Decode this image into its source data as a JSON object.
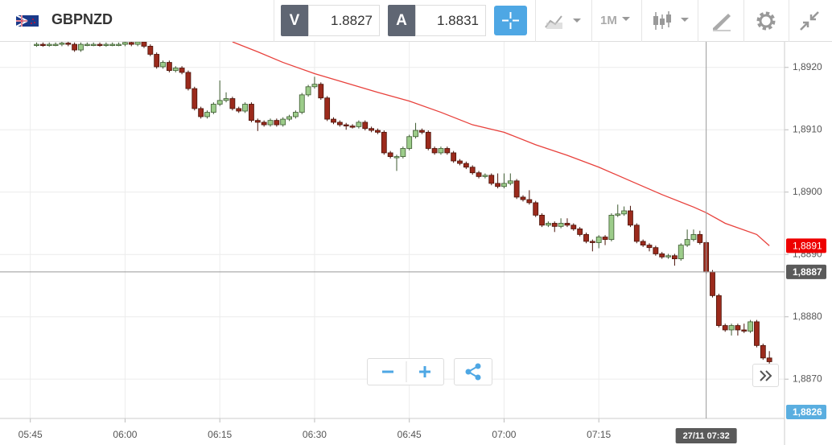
{
  "toolbar": {
    "symbol": "GBPNZD",
    "bid_label": "V",
    "bid": "1.8827",
    "ask_label": "A",
    "ask": "1.8831",
    "timeframe": "1M"
  },
  "chart_data": {
    "type": "candlestick",
    "up_color": "#9ccc8a",
    "down_color": "#9b2a1c",
    "grid": true,
    "xlim": [
      340.2,
      464.4
    ],
    "ylim": [
      1.88637,
      1.89241
    ],
    "xticks": [
      {
        "value": 345,
        "label": "05:45"
      },
      {
        "value": 360,
        "label": "06:00"
      },
      {
        "value": 375,
        "label": "06:15"
      },
      {
        "value": 390,
        "label": "06:30"
      },
      {
        "value": 405,
        "label": "06:45"
      },
      {
        "value": 420,
        "label": "07:00"
      },
      {
        "value": 435,
        "label": "07:15"
      }
    ],
    "yticks": [
      {
        "value": 1.892,
        "label": "1,8920"
      },
      {
        "value": 1.891,
        "label": "1,8910"
      },
      {
        "value": 1.89,
        "label": "1,8900"
      },
      {
        "value": 1.889,
        "label": "1,8890"
      },
      {
        "value": 1.888,
        "label": "1,8880"
      },
      {
        "value": 1.887,
        "label": "1,8870"
      }
    ],
    "x": [
      346,
      347,
      348,
      349,
      350,
      351,
      352,
      353,
      354,
      355,
      356,
      357,
      358,
      359,
      360,
      361,
      362,
      363,
      364,
      365,
      366,
      367,
      368,
      369,
      370,
      371,
      372,
      373,
      374,
      375,
      376,
      377,
      378,
      379,
      380,
      381,
      382,
      383,
      384,
      385,
      386,
      387,
      388,
      389,
      390,
      391,
      392,
      393,
      394,
      395,
      396,
      397,
      398,
      399,
      400,
      401,
      402,
      403,
      404,
      405,
      406,
      407,
      408,
      409,
      410,
      411,
      412,
      413,
      414,
      415,
      416,
      417,
      418,
      419,
      420,
      421,
      422,
      423,
      424,
      425,
      426,
      427,
      428,
      429,
      430,
      431,
      432,
      433,
      434,
      435,
      436,
      437,
      438,
      439,
      440,
      441,
      442,
      443,
      444,
      445,
      446,
      447,
      448,
      449,
      450,
      451,
      452,
      453,
      454,
      455,
      456,
      457,
      458,
      459,
      460,
      461,
      462
    ],
    "ohlc": [
      [
        1.89236,
        1.8924,
        1.89233,
        1.89237
      ],
      [
        1.89237,
        1.8924,
        1.89233,
        1.89236
      ],
      [
        1.89236,
        1.8924,
        1.89233,
        1.89237
      ],
      [
        1.89237,
        1.8924,
        1.89234,
        1.89237
      ],
      [
        1.89237,
        1.89242,
        1.89234,
        1.89239
      ],
      [
        1.89239,
        1.89242,
        1.89234,
        1.89237
      ],
      [
        1.89237,
        1.8924,
        1.89225,
        1.89228
      ],
      [
        1.89228,
        1.8924,
        1.89225,
        1.89237
      ],
      [
        1.89237,
        1.8924,
        1.89234,
        1.89237
      ],
      [
        1.89237,
        1.8924,
        1.89234,
        1.89237
      ],
      [
        1.89237,
        1.8924,
        1.89233,
        1.89236
      ],
      [
        1.89236,
        1.8924,
        1.89233,
        1.89237
      ],
      [
        1.89237,
        1.8924,
        1.89234,
        1.89237
      ],
      [
        1.89237,
        1.8924,
        1.89234,
        1.89237
      ],
      [
        1.89237,
        1.89243,
        1.89234,
        1.8924
      ],
      [
        1.8924,
        1.89243,
        1.89234,
        1.89237
      ],
      [
        1.89237,
        1.89244,
        1.89234,
        1.89241
      ],
      [
        1.89241,
        1.89244,
        1.89231,
        1.89234
      ],
      [
        1.89234,
        1.89237,
        1.89218,
        1.89221
      ],
      [
        1.89221,
        1.89224,
        1.89198,
        1.89201
      ],
      [
        1.89201,
        1.89211,
        1.89198,
        1.89208
      ],
      [
        1.89208,
        1.89211,
        1.89192,
        1.89195
      ],
      [
        1.89195,
        1.89202,
        1.89192,
        1.89199
      ],
      [
        1.89199,
        1.89202,
        1.89189,
        1.89192
      ],
      [
        1.89192,
        1.89195,
        1.89163,
        1.89166
      ],
      [
        1.89166,
        1.89169,
        1.89131,
        1.89134
      ],
      [
        1.89134,
        1.89137,
        1.89118,
        1.89121
      ],
      [
        1.89121,
        1.89131,
        1.89118,
        1.89128
      ],
      [
        1.89128,
        1.89144,
        1.89125,
        1.89141
      ],
      [
        1.89141,
        1.89179,
        1.89138,
        1.89147
      ],
      [
        1.89147,
        1.8916,
        1.89144,
        1.8915
      ],
      [
        1.8915,
        1.89153,
        1.89131,
        1.89134
      ],
      [
        1.89134,
        1.89137,
        1.89127,
        1.8913
      ],
      [
        1.8913,
        1.89144,
        1.89127,
        1.89141
      ],
      [
        1.89141,
        1.89144,
        1.89112,
        1.89115
      ],
      [
        1.89115,
        1.89118,
        1.89098,
        1.89112
      ],
      [
        1.89112,
        1.89115,
        1.89105,
        1.89108
      ],
      [
        1.89108,
        1.89118,
        1.89105,
        1.89115
      ],
      [
        1.89115,
        1.89118,
        1.89105,
        1.89108
      ],
      [
        1.89108,
        1.8912,
        1.89105,
        1.89117
      ],
      [
        1.89117,
        1.89124,
        1.89114,
        1.89121
      ],
      [
        1.89121,
        1.89131,
        1.89118,
        1.89128
      ],
      [
        1.89128,
        1.89159,
        1.89125,
        1.89156
      ],
      [
        1.89156,
        1.89172,
        1.89153,
        1.89169
      ],
      [
        1.89169,
        1.89185,
        1.89166,
        1.89173
      ],
      [
        1.89173,
        1.89176,
        1.89148,
        1.89151
      ],
      [
        1.89151,
        1.89154,
        1.89114,
        1.89117
      ],
      [
        1.89117,
        1.8912,
        1.89109,
        1.89112
      ],
      [
        1.89112,
        1.89115,
        1.89105,
        1.89108
      ],
      [
        1.89108,
        1.89111,
        1.891,
        1.89106
      ],
      [
        1.89106,
        1.89109,
        1.89102,
        1.89105
      ],
      [
        1.89105,
        1.89115,
        1.89102,
        1.89112
      ],
      [
        1.89112,
        1.89115,
        1.89099,
        1.89102
      ],
      [
        1.89102,
        1.89105,
        1.89096,
        1.89099
      ],
      [
        1.89099,
        1.89102,
        1.89093,
        1.89096
      ],
      [
        1.89096,
        1.89099,
        1.8906,
        1.89063
      ],
      [
        1.89063,
        1.89066,
        1.89054,
        1.89057
      ],
      [
        1.89057,
        1.8906,
        1.89034,
        1.89057
      ],
      [
        1.89057,
        1.89073,
        1.89054,
        1.8907
      ],
      [
        1.8907,
        1.89092,
        1.89067,
        1.89089
      ],
      [
        1.89089,
        1.89111,
        1.89086,
        1.89099
      ],
      [
        1.89099,
        1.89102,
        1.89093,
        1.89096
      ],
      [
        1.89096,
        1.89099,
        1.89067,
        1.8907
      ],
      [
        1.8907,
        1.89073,
        1.8906,
        1.89063
      ],
      [
        1.89063,
        1.89073,
        1.8906,
        1.8907
      ],
      [
        1.8907,
        1.89073,
        1.8906,
        1.89063
      ],
      [
        1.89063,
        1.89066,
        1.89047,
        1.8905
      ],
      [
        1.8905,
        1.89053,
        1.89043,
        1.89046
      ],
      [
        1.89046,
        1.89049,
        1.89037,
        1.8904
      ],
      [
        1.8904,
        1.89043,
        1.89028,
        1.89031
      ],
      [
        1.89031,
        1.89034,
        1.89022,
        1.89025
      ],
      [
        1.89025,
        1.8903,
        1.89022,
        1.89027
      ],
      [
        1.89027,
        1.8903,
        1.89011,
        1.89014
      ],
      [
        1.89014,
        1.8903,
        1.89006,
        1.89009
      ],
      [
        1.89009,
        1.8903,
        1.89006,
        1.89014
      ],
      [
        1.89014,
        1.8903,
        1.89011,
        1.89018
      ],
      [
        1.89018,
        1.89021,
        1.88989,
        1.88992
      ],
      [
        1.88992,
        1.88995,
        1.88985,
        1.88988
      ],
      [
        1.88988,
        1.89003,
        1.8898,
        1.88983
      ],
      [
        1.88983,
        1.88986,
        1.8896,
        1.88963
      ],
      [
        1.88963,
        1.88966,
        1.88944,
        1.88947
      ],
      [
        1.88947,
        1.88953,
        1.88944,
        1.8895
      ],
      [
        1.8895,
        1.88953,
        1.88936,
        1.88945
      ],
      [
        1.88945,
        1.88958,
        1.88942,
        1.8895
      ],
      [
        1.8895,
        1.88958,
        1.88944,
        1.88947
      ],
      [
        1.88947,
        1.8895,
        1.88938,
        1.88941
      ],
      [
        1.88941,
        1.88944,
        1.88929,
        1.88932
      ],
      [
        1.88932,
        1.88935,
        1.88918,
        1.88921
      ],
      [
        1.88921,
        1.88924,
        1.88905,
        1.88919
      ],
      [
        1.88919,
        1.88931,
        1.8891,
        1.88928
      ],
      [
        1.88928,
        1.88931,
        1.88915,
        1.88924
      ],
      [
        1.88924,
        1.88966,
        1.88921,
        1.88963
      ],
      [
        1.88963,
        1.8898,
        1.8896,
        1.88965
      ],
      [
        1.88965,
        1.88977,
        1.88962,
        1.8897
      ],
      [
        1.8897,
        1.88978,
        1.88944,
        1.88947
      ],
      [
        1.88947,
        1.8895,
        1.88918,
        1.88921
      ],
      [
        1.88921,
        1.88924,
        1.88912,
        1.88915
      ],
      [
        1.88915,
        1.88918,
        1.88905,
        1.88911
      ],
      [
        1.88911,
        1.88914,
        1.88898,
        1.88901
      ],
      [
        1.88901,
        1.88904,
        1.88893,
        1.88896
      ],
      [
        1.88896,
        1.88901,
        1.88893,
        1.88898
      ],
      [
        1.88898,
        1.88901,
        1.88882,
        1.88893
      ],
      [
        1.88893,
        1.88918,
        1.8889,
        1.88915
      ],
      [
        1.88915,
        1.8894,
        1.88912,
        1.88924
      ],
      [
        1.88924,
        1.8894,
        1.88921,
        1.88932
      ],
      [
        1.88932,
        1.88938,
        1.88916,
        1.88919
      ],
      [
        1.88919,
        1.88922,
        1.88869,
        1.88872
      ],
      [
        1.88872,
        1.88875,
        1.88831,
        1.88834
      ],
      [
        1.88834,
        1.88837,
        1.88783,
        1.88786
      ],
      [
        1.88786,
        1.88789,
        1.88776,
        1.88779
      ],
      [
        1.88779,
        1.88789,
        1.8877,
        1.88786
      ],
      [
        1.88786,
        1.88789,
        1.8877,
        1.88779
      ],
      [
        1.88779,
        1.88789,
        1.88774,
        1.88777
      ],
      [
        1.88777,
        1.88795,
        1.88774,
        1.88792
      ],
      [
        1.88792,
        1.88795,
        1.88751,
        1.88754
      ],
      [
        1.88754,
        1.88757,
        1.88731,
        1.88734
      ],
      [
        1.88734,
        1.88745,
        1.88725,
        1.88728
      ]
    ],
    "ma": {
      "color": "#e8413c",
      "x": [
        377,
        381,
        385,
        390,
        395,
        400,
        405,
        410,
        415,
        420,
        425,
        430,
        435,
        440,
        445,
        450,
        452,
        455,
        460,
        462
      ],
      "values": [
        1.89241,
        1.89225,
        1.89208,
        1.8919,
        1.89175,
        1.8916,
        1.89146,
        1.89128,
        1.89108,
        1.89096,
        1.89076,
        1.89059,
        1.8904,
        1.89018,
        1.88996,
        1.88976,
        1.88967,
        1.8895,
        1.88932,
        1.88914
      ]
    },
    "ma_label": {
      "value": 1.88914,
      "label": "1,8891",
      "color": "#ee0000"
    },
    "crosshair": {
      "x": 452,
      "y": 1.88872,
      "x_label": "27/11 07:32",
      "y_label": "1,8887",
      "color": "#5a5a5a"
    },
    "price_label": {
      "label": "1,8826",
      "color": "#5aaee0"
    }
  }
}
